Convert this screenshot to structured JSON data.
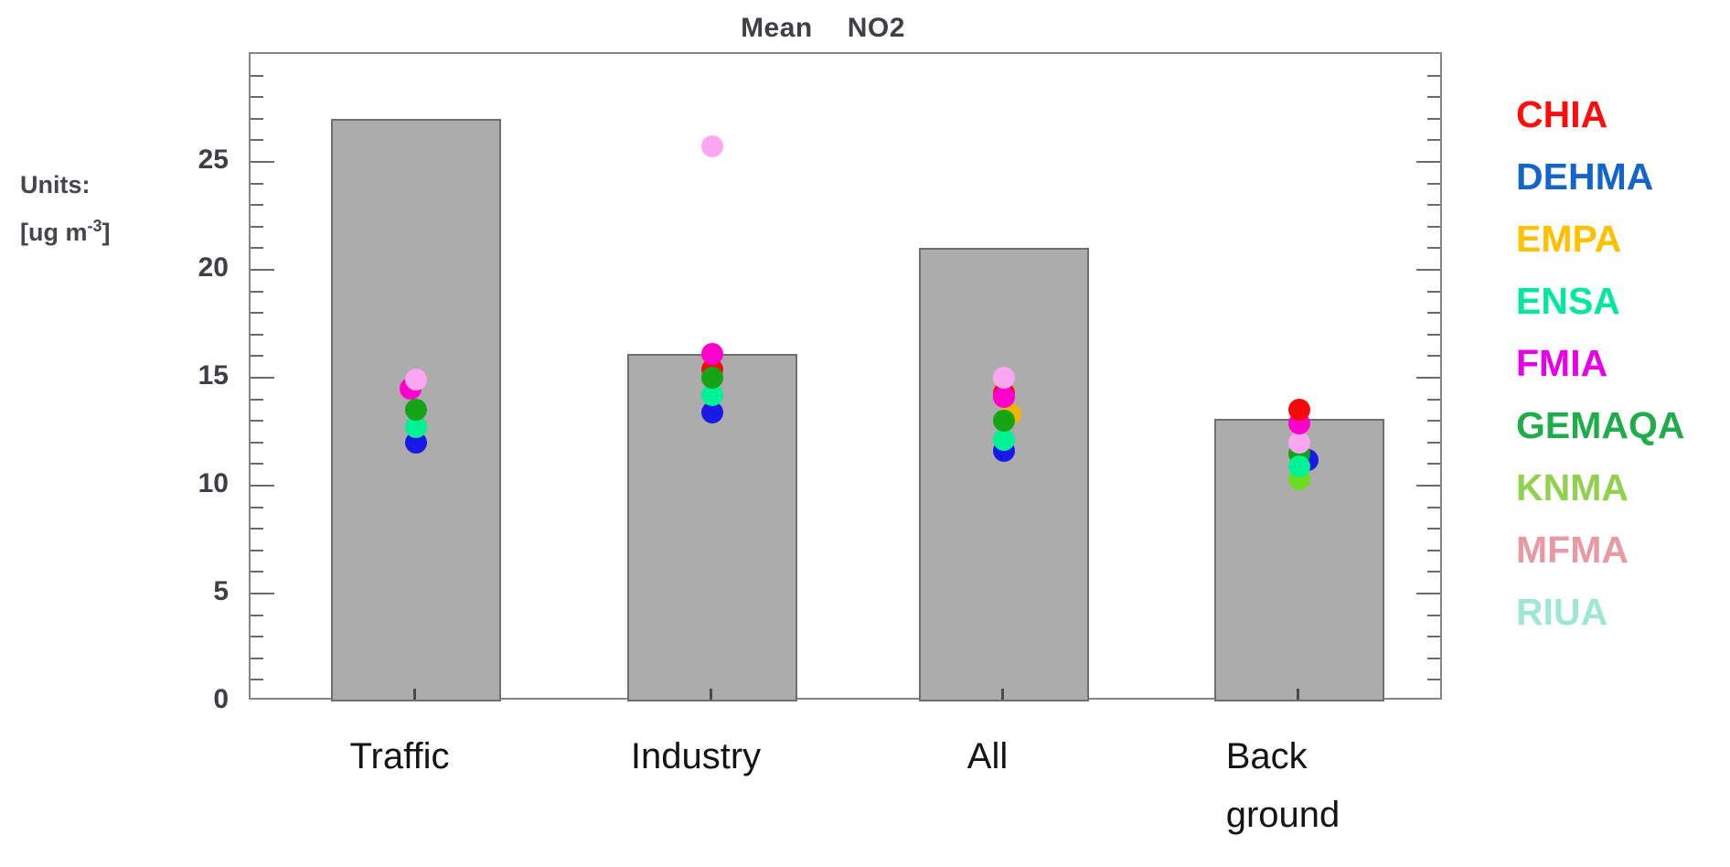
{
  "title": {
    "word1": "Mean",
    "word2": "NO2"
  },
  "units_label": {
    "line1": "Units:",
    "line2_base": "[ug m",
    "line2_exp": "-3",
    "line2_close": "]"
  },
  "chart_data": {
    "type": "bar",
    "title": "Mean NO2",
    "units": "[ug m-3]",
    "ylim": [
      0,
      30
    ],
    "ytick_major_step": 5,
    "ytick_minor_step": 1,
    "ytick_labels": [
      "0",
      "5",
      "10",
      "15",
      "20",
      "25"
    ],
    "grid": false,
    "legend_position": "right-outside",
    "categories": [
      "Traffic",
      "Industry",
      "All",
      "Back ground"
    ],
    "category_label_lines": [
      [
        "Traffic"
      ],
      [
        "Industry"
      ],
      [
        "All"
      ],
      [
        "Back",
        "ground"
      ]
    ],
    "bar_values": [
      27.0,
      16.1,
      21.0,
      13.1
    ],
    "bar_fill": "#ACACAC",
    "bar_border": "#6F6F6F",
    "series": [
      {
        "name": "CHIA",
        "legend_color": "#FF0D0D",
        "dot_color": "#F50A0A"
      },
      {
        "name": "DEHMA",
        "legend_color": "#1565C8",
        "dot_color": "#1A1AE8"
      },
      {
        "name": "EMPA",
        "legend_color": "#FFC000",
        "dot_color": "#F0B400"
      },
      {
        "name": "ENSA",
        "legend_color": "#00E89E",
        "dot_color": "#00F295"
      },
      {
        "name": "FMIA",
        "legend_color": "#E800E8",
        "dot_color": "#FF00CC"
      },
      {
        "name": "GEMAQA",
        "legend_color": "#1FAD4B",
        "dot_color": "#14A414"
      },
      {
        "name": "KNMA",
        "legend_color": "#92D050",
        "dot_color": "#6EDC1E"
      },
      {
        "name": "MFMA",
        "legend_color": "#E89AA4",
        "dot_color": "#FBA6F1"
      },
      {
        "name": "RIUA",
        "legend_color": "#9FE7D3",
        "dot_color": "#9FE7D3"
      }
    ],
    "points": {
      "Traffic": [
        {
          "series": "DEHMA",
          "value": 12.0
        },
        {
          "series": "ENSA",
          "value": 12.7
        },
        {
          "series": "GEMAQA",
          "value": 13.5
        },
        {
          "series": "FMIA",
          "value": 14.5,
          "dx": -6
        },
        {
          "series": "MFMA",
          "value": 14.9
        }
      ],
      "Industry": [
        {
          "series": "DEHMA",
          "value": 13.4
        },
        {
          "series": "ENSA",
          "value": 14.2
        },
        {
          "series": "CHIA",
          "value": 15.4
        },
        {
          "series": "GEMAQA",
          "value": 15.0
        },
        {
          "series": "FMIA",
          "value": 16.1
        },
        {
          "series": "MFMA",
          "value": 25.7
        }
      ],
      "All": [
        {
          "series": "DEHMA",
          "value": 11.6
        },
        {
          "series": "ENSA",
          "value": 12.1
        },
        {
          "series": "EMPA",
          "value": 13.3,
          "dx": 7
        },
        {
          "series": "GEMAQA",
          "value": 13.0
        },
        {
          "series": "CHIA",
          "value": 14.3
        },
        {
          "series": "FMIA",
          "value": 14.1
        },
        {
          "series": "MFMA",
          "value": 15.0
        }
      ],
      "Back ground": [
        {
          "series": "KNMA",
          "value": 10.3
        },
        {
          "series": "DEHMA",
          "value": 11.2,
          "dx": 9
        },
        {
          "series": "GEMAQA",
          "value": 11.5
        },
        {
          "series": "ENSA",
          "value": 10.9
        },
        {
          "series": "MFMA",
          "value": 12.0
        },
        {
          "series": "FMIA",
          "value": 12.9
        },
        {
          "series": "CHIA",
          "value": 13.5
        }
      ]
    }
  }
}
